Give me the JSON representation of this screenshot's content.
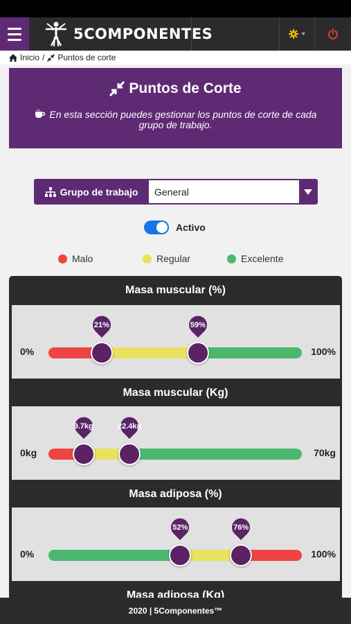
{
  "app": {
    "logo_text": "5COMPONENTES"
  },
  "breadcrumb": {
    "home": "Inicio",
    "separator": "/",
    "current": "Puntos de corte"
  },
  "header": {
    "title": "Puntos de Corte",
    "subtitle": "En esta sección puedes gestionar los puntos de corte de cada grupo de trabajo."
  },
  "group": {
    "label": "Grupo de trabajo",
    "selected": "General"
  },
  "toggle": {
    "label": "Activo",
    "on": true
  },
  "legend": [
    {
      "label": "Malo",
      "color": "#ee4444"
    },
    {
      "label": "Regular",
      "color": "#e8e25e"
    },
    {
      "label": "Excelente",
      "color": "#4cb86f"
    }
  ],
  "colors": {
    "primary": "#5f2a74",
    "dark": "#2b2b2d",
    "red": "#ee4444",
    "yellow": "#e8e25e",
    "green": "#4cb86f",
    "handle": "#5a2464",
    "power": "#e53935",
    "gear": "#f2c200"
  },
  "sliders": [
    {
      "title": "Masa muscular (%)",
      "min_label": "0%",
      "max_label": "100%",
      "min": 0,
      "max": 100,
      "points": [
        21,
        59
      ],
      "point_labels": [
        "21%",
        "59%"
      ],
      "colors": [
        "red",
        "yellow",
        "green"
      ]
    },
    {
      "title": "Masa muscular (Kg)",
      "min_label": "0kg",
      "max_label": "70kg",
      "min": 0,
      "max": 70,
      "points": [
        9.7,
        22.4
      ],
      "point_labels": [
        "9.7kg",
        "22.4kg"
      ],
      "colors": [
        "red",
        "yellow",
        "green"
      ]
    },
    {
      "title": "Masa adiposa (%)",
      "min_label": "0%",
      "max_label": "100%",
      "min": 0,
      "max": 100,
      "points": [
        52,
        76
      ],
      "point_labels": [
        "52%",
        "76%"
      ],
      "colors": [
        "green",
        "yellow",
        "red"
      ]
    },
    {
      "title": "Masa adiposa (Kg)"
    }
  ],
  "footer": {
    "text": "2020 | 5Componentes™"
  }
}
